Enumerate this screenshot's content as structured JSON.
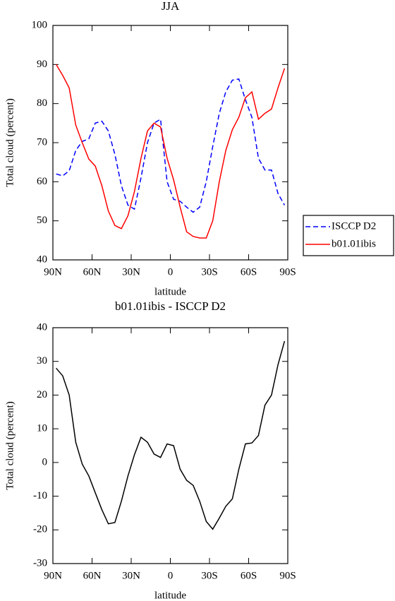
{
  "chart_data": [
    {
      "type": "line",
      "title": "JJA",
      "xlabel": "latitude",
      "ylabel": "Total cloud (percent)",
      "x": [
        87.5,
        82.5,
        77.5,
        72.5,
        67.5,
        62.5,
        57.5,
        52.5,
        47.5,
        42.5,
        37.5,
        32.5,
        27.5,
        22.5,
        17.5,
        12.5,
        7.5,
        2.5,
        -2.5,
        -7.5,
        -12.5,
        -17.5,
        -22.5,
        -27.5,
        -32.5,
        -37.5,
        -42.5,
        -47.5,
        -52.5,
        -57.5,
        -62.5,
        -67.5,
        -72.5,
        -77.5,
        -82.5,
        -87.5
      ],
      "series": [
        {
          "name": "ISCCP D2",
          "color": "#0000ff",
          "dash": "dashed",
          "values": [
            62,
            61.5,
            62.8,
            68,
            70.3,
            71,
            75,
            75.5,
            73,
            67,
            59,
            54,
            53,
            61,
            70,
            75,
            76,
            60,
            55.5,
            55,
            53.5,
            52.2,
            53.5,
            60,
            69,
            77.5,
            83,
            86,
            86.3,
            81,
            76.5,
            66,
            63,
            63,
            57,
            54
          ]
        },
        {
          "name": "b01.01ibis",
          "color": "#ff0000",
          "dash": "solid",
          "values": [
            90,
            87.2,
            84,
            74.5,
            70,
            65.8,
            64,
            59,
            52.5,
            48.8,
            48,
            51.3,
            57.5,
            66,
            73,
            75,
            74,
            66,
            60.5,
            53.5,
            47.2,
            46,
            45.6,
            45.6,
            50,
            60,
            68,
            73.3,
            76.5,
            81.5,
            83,
            76,
            77.5,
            78.6,
            84,
            89
          ]
        }
      ],
      "xlim": [
        90,
        -90
      ],
      "xticks": [
        {
          "value": 90,
          "label": "90N"
        },
        {
          "value": 60,
          "label": "60N"
        },
        {
          "value": 30,
          "label": "30N"
        },
        0,
        {
          "value": -30,
          "label": "30S"
        },
        {
          "value": -60,
          "label": "60S"
        },
        {
          "value": -90,
          "label": "90S"
        }
      ],
      "ylim": [
        40,
        100
      ],
      "yticks": [
        40,
        50,
        60,
        70,
        80,
        90,
        100
      ],
      "legend": "right"
    },
    {
      "type": "line",
      "title": "b01.01ibis - ISCCP D2",
      "xlabel": "latitude",
      "ylabel": "Total cloud (percent)",
      "x": [
        87.5,
        82.5,
        77.5,
        72.5,
        67.5,
        62.5,
        57.5,
        52.5,
        47.5,
        42.5,
        37.5,
        32.5,
        27.5,
        22.5,
        17.5,
        12.5,
        7.5,
        2.5,
        -2.5,
        -7.5,
        -12.5,
        -17.5,
        -22.5,
        -27.5,
        -32.5,
        -37.5,
        -42.5,
        -47.5,
        -52.5,
        -57.5,
        -62.5,
        -67.5,
        -72.5,
        -77.5,
        -82.5,
        -87.5
      ],
      "series": [
        {
          "color": "#000000",
          "dash": "solid",
          "values": [
            28,
            25.7,
            20,
            6,
            -0.5,
            -4,
            -9,
            -14,
            -18.2,
            -17.8,
            -11.5,
            -4,
            2.3,
            7.5,
            6,
            2.5,
            1.5,
            5.5,
            5,
            -2,
            -5.3,
            -6.8,
            -11.5,
            -17.5,
            -19.8,
            -16.5,
            -13,
            -10.8,
            -2,
            5.5,
            5.8,
            8,
            17,
            20,
            29,
            36
          ]
        }
      ],
      "xlim": [
        90,
        -90
      ],
      "xticks": [
        {
          "value": 90,
          "label": "90N"
        },
        {
          "value": 60,
          "label": "60N"
        },
        {
          "value": 30,
          "label": "30N"
        },
        0,
        {
          "value": -30,
          "label": "30S"
        },
        {
          "value": -60,
          "label": "60S"
        },
        {
          "value": -90,
          "label": "90S"
        }
      ],
      "ylim": [
        -30,
        40
      ],
      "yticks": [
        -30,
        -20,
        -10,
        0,
        10,
        20,
        30,
        40
      ]
    }
  ]
}
